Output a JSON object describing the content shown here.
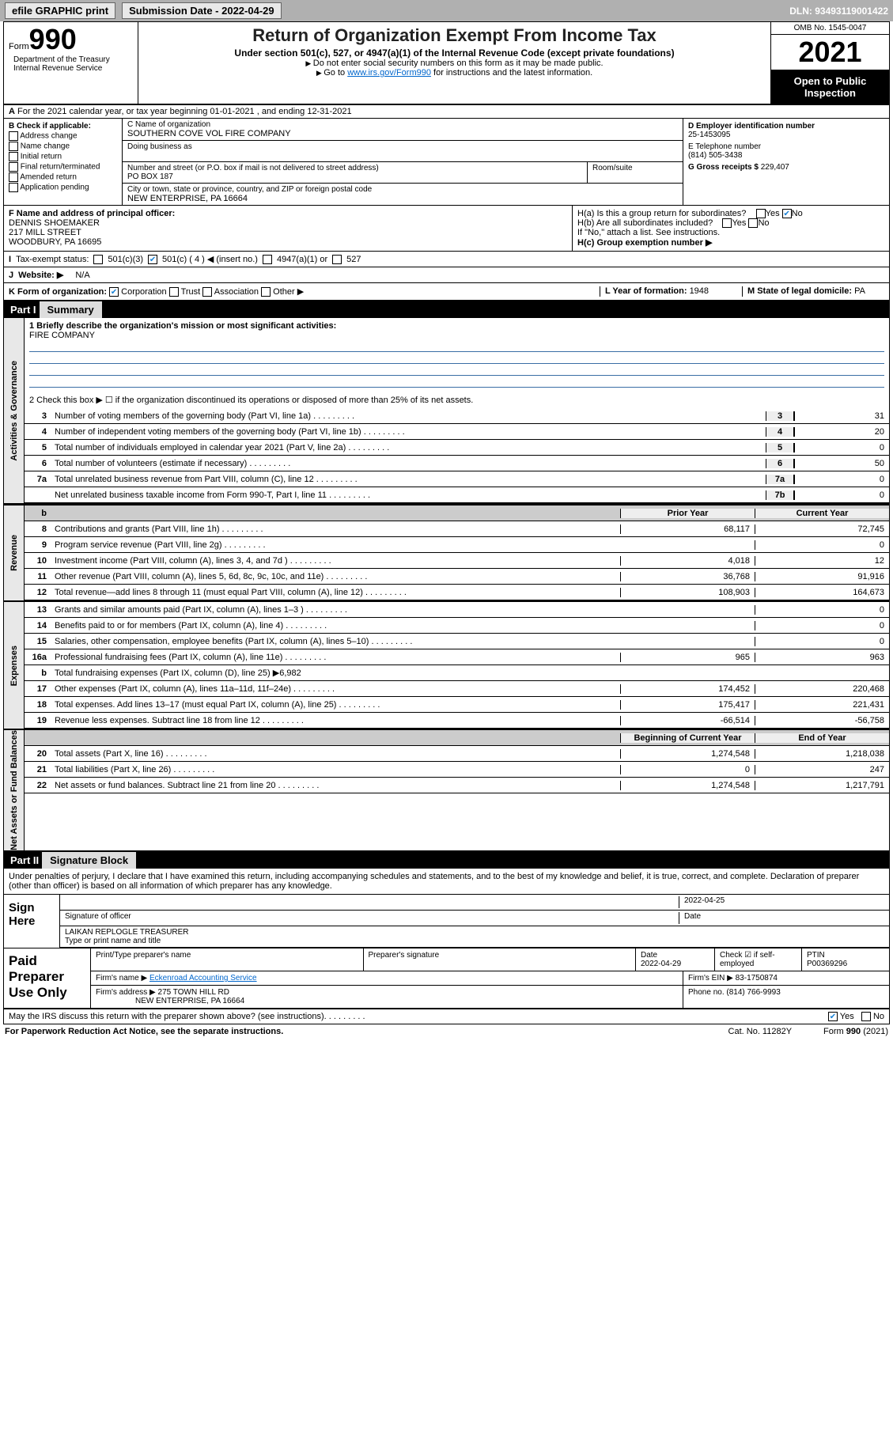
{
  "topbar": {
    "efile": "efile GRAPHIC print",
    "subdate_lbl": "Submission Date - ",
    "subdate": "2022-04-29",
    "dln_lbl": "DLN: ",
    "dln": "93493119001422"
  },
  "header": {
    "form_label": "Form",
    "form_num": "990",
    "title": "Return of Organization Exempt From Income Tax",
    "subtitle": "Under section 501(c), 527, or 4947(a)(1) of the Internal Revenue Code (except private foundations)",
    "note1": "Do not enter social security numbers on this form as it may be made public.",
    "note2_prefix": "Go to ",
    "note2_link": "www.irs.gov/Form990",
    "note2_suffix": " for instructions and the latest information.",
    "omb": "OMB No. 1545-0047",
    "year": "2021",
    "open": "Open to Public Inspection",
    "dept": "Department of the Treasury",
    "irs": "Internal Revenue Service"
  },
  "row_a": "For the 2021 calendar year, or tax year beginning 01-01-2021   , and ending 12-31-2021",
  "col_b": {
    "hdr": "B Check if applicable:",
    "addr_change": "Address change",
    "name_change": "Name change",
    "initial": "Initial return",
    "final": "Final return/terminated",
    "amended": "Amended return",
    "app_pending": "Application pending"
  },
  "col_c": {
    "name_lbl": "C Name of organization",
    "name": "SOUTHERN COVE VOL FIRE COMPANY",
    "dba_lbl": "Doing business as",
    "street_lbl": "Number and street (or P.O. box if mail is not delivered to street address)",
    "street": "PO BOX 187",
    "room_lbl": "Room/suite",
    "city_lbl": "City or town, state or province, country, and ZIP or foreign postal code",
    "city": "NEW ENTERPRISE, PA  16664"
  },
  "col_de": {
    "d_lbl": "D Employer identification number",
    "d_val": "25-1453095",
    "e_lbl": "E Telephone number",
    "e_val": "(814) 505-3438",
    "g_lbl": "G Gross receipts $ ",
    "g_val": "229,407"
  },
  "col_f": {
    "lbl": "F Name and address of principal officer:",
    "name": "DENNIS SHOEMAKER",
    "addr1": "217 MILL STREET",
    "addr2": "WOODBURY, PA  16695"
  },
  "col_h": {
    "ha": "H(a)  Is this a group return for subordinates?",
    "hb": "H(b)  Are all subordinates included?",
    "hb_note": "If \"No,\" attach a list. See instructions.",
    "hc": "H(c)  Group exemption number ▶",
    "yes": "Yes",
    "no": "No"
  },
  "tax_status": {
    "lbl": "Tax-exempt status:",
    "c3": "501(c)(3)",
    "c4": "501(c) ( 4 ) ◀ (insert no.)",
    "a1": "4947(a)(1) or",
    "s527": "527"
  },
  "website": {
    "lbl": "Website: ▶",
    "val": "N/A"
  },
  "row_k": {
    "k": "K Form of organization:",
    "corp": "Corporation",
    "trust": "Trust",
    "assoc": "Association",
    "other": "Other ▶",
    "l": "L Year of formation: ",
    "l_val": "1948",
    "m": "M State of legal domicile: ",
    "m_val": "PA"
  },
  "part1": {
    "label": "Part I",
    "title": "Summary"
  },
  "briefly": {
    "lbl": "1   Briefly describe the organization's mission or most significant activities:",
    "val": "FIRE COMPANY"
  },
  "line2": "2   Check this box ▶ ☐  if the organization discontinued its operations or disposed of more than 25% of its net assets.",
  "vert": {
    "gov": "Activities & Governance",
    "rev": "Revenue",
    "exp": "Expenses",
    "net": "Net Assets or Fund Balances"
  },
  "gov_lines": [
    {
      "n": "3",
      "d": "Number of voting members of the governing body (Part VI, line 1a)",
      "b": "3",
      "v": "31"
    },
    {
      "n": "4",
      "d": "Number of independent voting members of the governing body (Part VI, line 1b)",
      "b": "4",
      "v": "20"
    },
    {
      "n": "5",
      "d": "Total number of individuals employed in calendar year 2021 (Part V, line 2a)",
      "b": "5",
      "v": "0"
    },
    {
      "n": "6",
      "d": "Total number of volunteers (estimate if necessary)",
      "b": "6",
      "v": "50"
    },
    {
      "n": "7a",
      "d": "Total unrelated business revenue from Part VIII, column (C), line 12",
      "b": "7a",
      "v": "0"
    },
    {
      "n": "",
      "d": "Net unrelated business taxable income from Form 990-T, Part I, line 11",
      "b": "7b",
      "v": "0"
    }
  ],
  "col_hdrs": {
    "n": "b",
    "prior": "Prior Year",
    "current": "Current Year",
    "boy": "Beginning of Current Year",
    "eoy": "End of Year"
  },
  "rev_lines": [
    {
      "n": "8",
      "d": "Contributions and grants (Part VIII, line 1h)",
      "p": "68,117",
      "c": "72,745"
    },
    {
      "n": "9",
      "d": "Program service revenue (Part VIII, line 2g)",
      "p": "",
      "c": "0"
    },
    {
      "n": "10",
      "d": "Investment income (Part VIII, column (A), lines 3, 4, and 7d )",
      "p": "4,018",
      "c": "12"
    },
    {
      "n": "11",
      "d": "Other revenue (Part VIII, column (A), lines 5, 6d, 8c, 9c, 10c, and 11e)",
      "p": "36,768",
      "c": "91,916"
    },
    {
      "n": "12",
      "d": "Total revenue—add lines 8 through 11 (must equal Part VIII, column (A), line 12)",
      "p": "108,903",
      "c": "164,673"
    }
  ],
  "exp_lines": [
    {
      "n": "13",
      "d": "Grants and similar amounts paid (Part IX, column (A), lines 1–3 )",
      "p": "",
      "c": "0"
    },
    {
      "n": "14",
      "d": "Benefits paid to or for members (Part IX, column (A), line 4)",
      "p": "",
      "c": "0"
    },
    {
      "n": "15",
      "d": "Salaries, other compensation, employee benefits (Part IX, column (A), lines 5–10)",
      "p": "",
      "c": "0"
    },
    {
      "n": "16a",
      "d": "Professional fundraising fees (Part IX, column (A), line 11e)",
      "p": "965",
      "c": "963"
    },
    {
      "n": "b",
      "d": "Total fundraising expenses (Part IX, column (D), line 25) ▶6,982",
      "p": null,
      "c": null
    },
    {
      "n": "17",
      "d": "Other expenses (Part IX, column (A), lines 11a–11d, 11f–24e)",
      "p": "174,452",
      "c": "220,468"
    },
    {
      "n": "18",
      "d": "Total expenses. Add lines 13–17 (must equal Part IX, column (A), line 25)",
      "p": "175,417",
      "c": "221,431"
    },
    {
      "n": "19",
      "d": "Revenue less expenses. Subtract line 18 from line 12",
      "p": "-66,514",
      "c": "-56,758"
    }
  ],
  "net_lines": [
    {
      "n": "20",
      "d": "Total assets (Part X, line 16)",
      "p": "1,274,548",
      "c": "1,218,038"
    },
    {
      "n": "21",
      "d": "Total liabilities (Part X, line 26)",
      "p": "0",
      "c": "247"
    },
    {
      "n": "22",
      "d": "Net assets or fund balances. Subtract line 21 from line 20",
      "p": "1,274,548",
      "c": "1,217,791"
    }
  ],
  "part2": {
    "label": "Part II",
    "title": "Signature Block"
  },
  "sig_text": "Under penalties of perjury, I declare that I have examined this return, including accompanying schedules and statements, and to the best of my knowledge and belief, it is true, correct, and complete. Declaration of preparer (other than officer) is based on all information of which preparer has any knowledge.",
  "sign": {
    "here": "Sign Here",
    "sig_officer": "Signature of officer",
    "date_lbl": "Date",
    "date": "2022-04-25",
    "name": "LAIKAN REPLOGLE  TREASURER",
    "name_lbl": "Type or print name and title"
  },
  "paid": {
    "lbl": "Paid Preparer Use Only",
    "h1": "Print/Type preparer's name",
    "h2": "Preparer's signature",
    "h3": "Date",
    "h3v": "2022-04-29",
    "h4": "Check ☑ if self-employed",
    "h5": "PTIN",
    "h5v": "P00369296",
    "firm_name_lbl": "Firm's name    ▶ ",
    "firm_name": "Eckenroad Accounting Service",
    "firm_ein_lbl": "Firm's EIN ▶ ",
    "firm_ein": "83-1750874",
    "firm_addr_lbl": "Firm's address ▶ ",
    "firm_addr1": "275 TOWN HILL RD",
    "firm_addr2": "NEW ENTERPRISE, PA  16664",
    "phone_lbl": "Phone no. ",
    "phone": "(814) 766-9993"
  },
  "footer": {
    "q": "May the IRS discuss this return with the preparer shown above? (see instructions)",
    "yes": "Yes",
    "no": "No",
    "pra": "For Paperwork Reduction Act Notice, see the separate instructions.",
    "cat": "Cat. No. 11282Y",
    "form": "Form 990 (2021)"
  }
}
